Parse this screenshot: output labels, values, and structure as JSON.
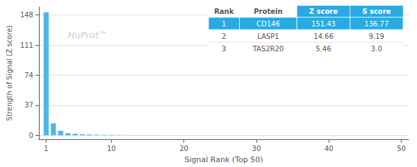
{
  "chart_data": {
    "type": "bar",
    "xlabel": "Signal Rank (Top 50)",
    "ylabel": "Strength of Signal (Z score)",
    "x": [
      1,
      2,
      3,
      4,
      5,
      6,
      7,
      8,
      9,
      10,
      11,
      12,
      13,
      14,
      15,
      16,
      17,
      18,
      19,
      20,
      21,
      22,
      23,
      24,
      25,
      26,
      27,
      28,
      29,
      30,
      31,
      32,
      33,
      34,
      35,
      36,
      37,
      38,
      39,
      40,
      41,
      42,
      43,
      44,
      45,
      46,
      47,
      48,
      49,
      50
    ],
    "values": [
      151.43,
      14.66,
      5.46,
      2.5,
      1.8,
      1.2,
      0.9,
      0.7,
      0.5,
      0.4,
      0.3,
      0.25,
      0.2,
      0.18,
      0.15,
      0.12,
      0.1,
      0.09,
      0.08,
      0.07,
      0.06,
      0.05,
      0.04,
      0.03,
      0.02,
      0.02,
      0.01,
      0.01,
      0.01,
      0.01,
      0.0,
      0.0,
      0.0,
      0.0,
      0.0,
      0.0,
      0.0,
      0.0,
      0.0,
      0.0,
      0.0,
      0.0,
      0.0,
      0.0,
      0.0,
      0.0,
      0.0,
      0.0,
      0.0,
      0.0
    ],
    "color": "#4db8e8",
    "xlim": [
      0,
      51
    ],
    "xticks": [
      1,
      10,
      20,
      30,
      40,
      50
    ],
    "ylim": [
      -5,
      158
    ],
    "yticks": [
      0,
      37,
      74,
      111,
      148
    ],
    "grid": true,
    "annotations": [
      {
        "text": "HuProt™",
        "color": "#cccccc"
      }
    ],
    "table": {
      "header": [
        "Rank",
        "Protein",
        "Z score",
        "S score"
      ],
      "rows": [
        [
          "1",
          "CD146",
          "151.43",
          "136.77"
        ],
        [
          "2",
          "LASP1",
          "14.66",
          "9.19"
        ],
        [
          "3",
          "TAS2R20",
          "5.46",
          "3.0"
        ]
      ],
      "highlight_color": "#29aae2",
      "highlight_text_color": "#ffffff",
      "text_color": "#555555"
    }
  }
}
